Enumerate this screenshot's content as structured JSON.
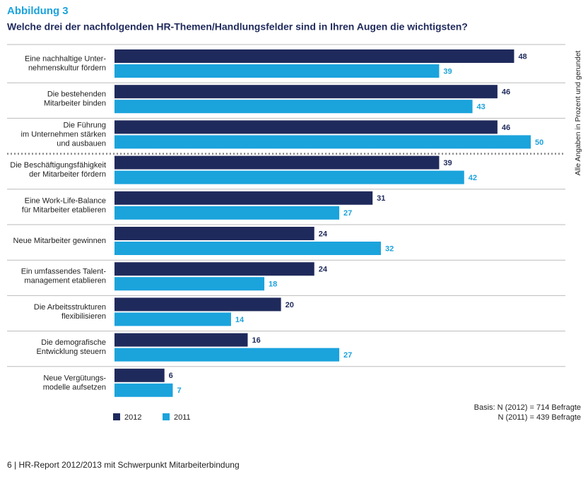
{
  "chart_data": {
    "type": "bar",
    "orientation": "horizontal",
    "heading": "Abbildung 3",
    "title": "Welche drei der nachfolgenden HR-Themen/Handlungsfelder sind in Ihren Augen die wichtigsten?",
    "categories": [
      "Eine nachhaltige Unter-\nnehmenskultur fördern",
      "Die bestehenden\nMitarbeiter binden",
      "Die Führung\nim Unternehmen stärken\nund ausbauen",
      "Die Beschäftigungsfähigkeit\nder Mitarbeiter fördern",
      "Eine Work-Life-Balance\nfür Mitarbeiter etablieren",
      "Neue Mitarbeiter gewinnen",
      "Ein umfassendes Talent-\nmanagement etablieren",
      "Die Arbeitsstrukturen\nflexibilisieren",
      "Die demografische\nEntwicklung steuern",
      "Neue Vergütungs-\nmodelle aufsetzen"
    ],
    "series": [
      {
        "name": "2012",
        "color": "#1f2a5c",
        "values": [
          48,
          46,
          46,
          39,
          31,
          24,
          24,
          20,
          16,
          6
        ]
      },
      {
        "name": "2011",
        "color": "#1ba3dc",
        "values": [
          39,
          43,
          50,
          42,
          27,
          32,
          18,
          14,
          27,
          7
        ]
      }
    ],
    "note": "Alle Angaben in Prozent und gerundet",
    "basis": [
      "Basis: N (2012) = 714 Befragte",
      "N (2011) = 439 Befragte"
    ]
  },
  "footer": "6 | HR-Report 2012/2013 mit Schwerpunkt Mitarbeiterbindung"
}
